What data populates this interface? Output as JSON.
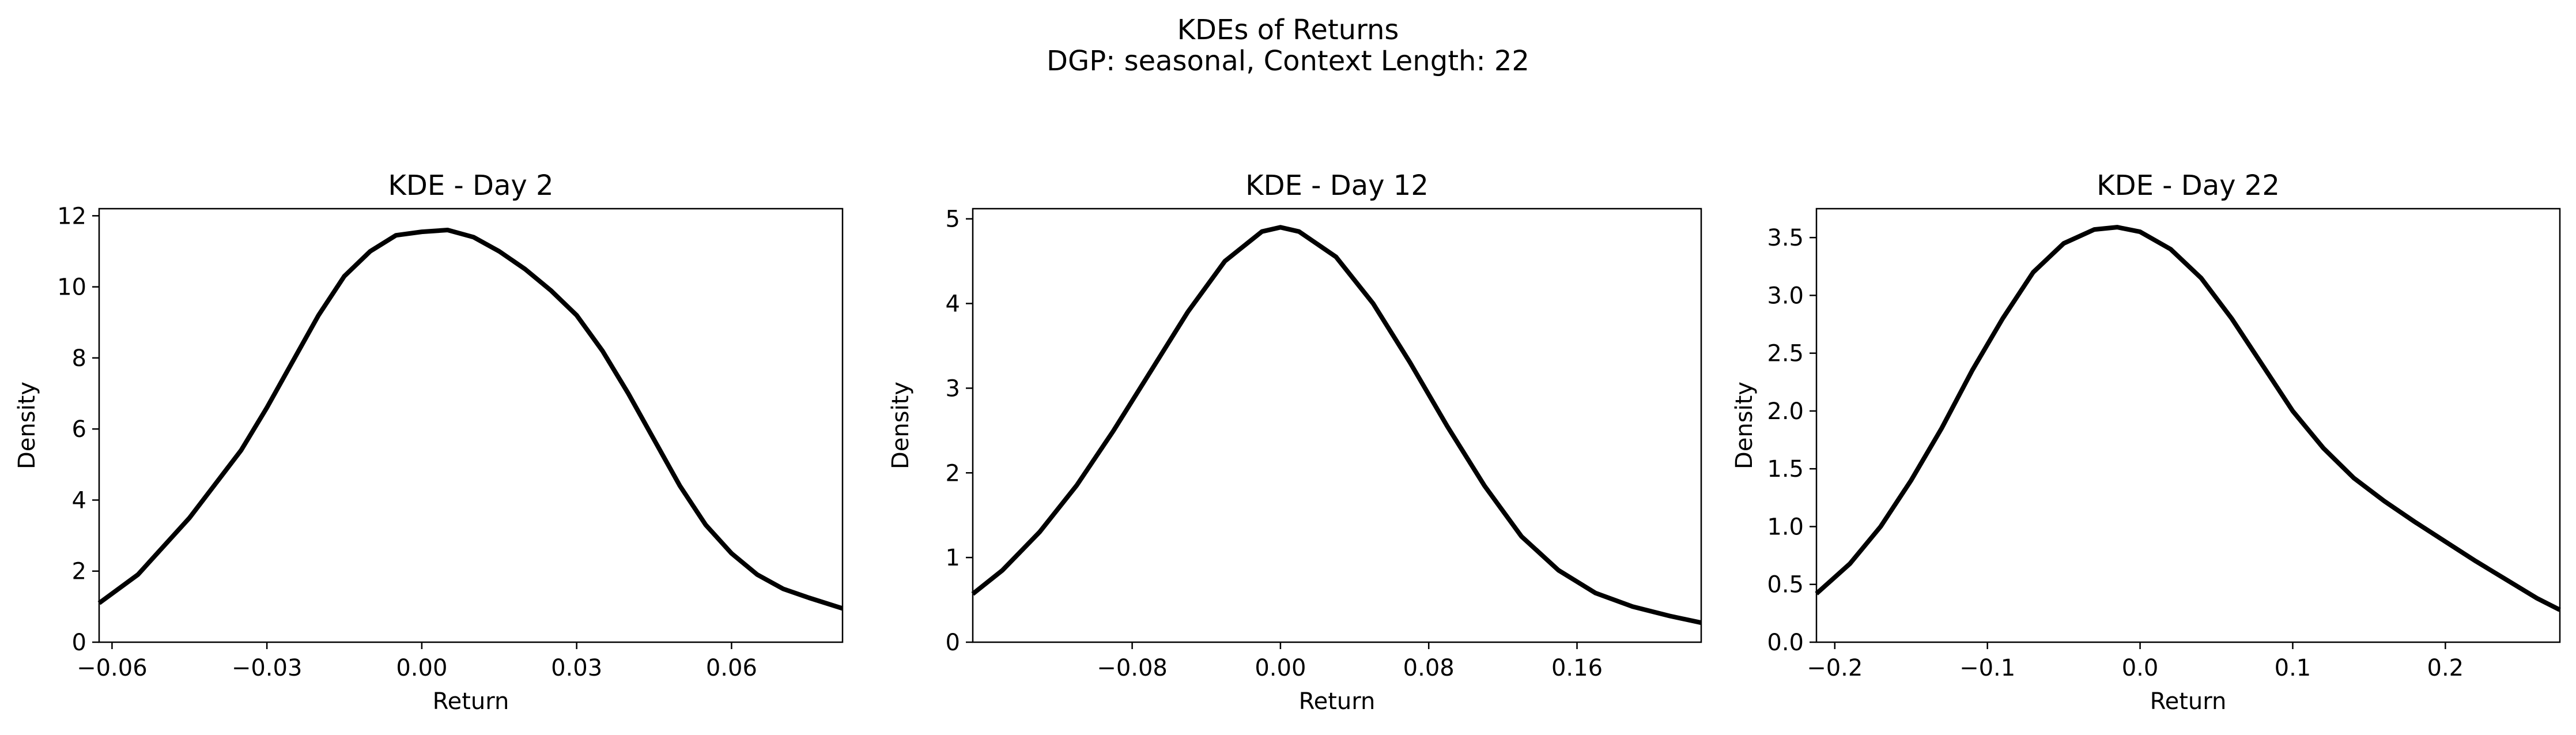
{
  "figure": {
    "title_line1": "KDEs of Returns",
    "title_line2": "DGP: seasonal, Context Length: 22"
  },
  "chart_data": [
    {
      "type": "line",
      "title": "KDE - Day 2",
      "xlabel": "Return",
      "ylabel": "Density",
      "xlim": [
        -0.0625,
        0.0815
      ],
      "ylim": [
        0,
        12.2
      ],
      "xticks": [
        -0.06,
        -0.03,
        0.0,
        0.03,
        0.06
      ],
      "xtick_labels": [
        "−0.06",
        "−0.03",
        "0.00",
        "0.03",
        "0.06"
      ],
      "yticks": [
        0,
        2,
        4,
        6,
        8,
        10,
        12
      ],
      "ytick_labels": [
        "0",
        "2",
        "4",
        "6",
        "8",
        "10",
        "12"
      ],
      "line_color": "#000000",
      "series": [
        {
          "x": [
            -0.0625,
            -0.055,
            -0.045,
            -0.035,
            -0.03,
            -0.025,
            -0.02,
            -0.015,
            -0.01,
            -0.005,
            0.0,
            0.005,
            0.01,
            0.015,
            0.02,
            0.025,
            0.03,
            0.035,
            0.04,
            0.045,
            0.05,
            0.055,
            0.06,
            0.065,
            0.07,
            0.075,
            0.0815
          ],
          "y": [
            1.1,
            1.9,
            3.5,
            5.4,
            6.6,
            7.9,
            9.2,
            10.3,
            11.0,
            11.45,
            11.55,
            11.6,
            11.4,
            11.0,
            10.5,
            9.9,
            9.2,
            8.2,
            7.0,
            5.7,
            4.4,
            3.3,
            2.5,
            1.9,
            1.5,
            1.25,
            0.95
          ]
        }
      ]
    },
    {
      "type": "line",
      "title": "KDE - Day 12",
      "xlabel": "Return",
      "ylabel": "Density",
      "xlim": [
        -0.166,
        0.227
      ],
      "ylim": [
        0,
        5.12
      ],
      "xticks": [
        -0.08,
        0.0,
        0.08,
        0.16
      ],
      "xtick_labels": [
        "−0.08",
        "0.00",
        "0.08",
        "0.16"
      ],
      "yticks": [
        0,
        1,
        2,
        3,
        4,
        5
      ],
      "ytick_labels": [
        "0",
        "1",
        "2",
        "3",
        "4",
        "5"
      ],
      "line_color": "#000000",
      "series": [
        {
          "x": [
            -0.166,
            -0.15,
            -0.13,
            -0.11,
            -0.09,
            -0.07,
            -0.05,
            -0.03,
            -0.01,
            0.0,
            0.01,
            0.03,
            0.05,
            0.07,
            0.09,
            0.11,
            0.13,
            0.15,
            0.17,
            0.19,
            0.21,
            0.227
          ],
          "y": [
            0.57,
            0.85,
            1.3,
            1.85,
            2.5,
            3.2,
            3.9,
            4.5,
            4.85,
            4.9,
            4.85,
            4.55,
            4.0,
            3.3,
            2.55,
            1.85,
            1.25,
            0.85,
            0.58,
            0.42,
            0.31,
            0.23
          ]
        }
      ]
    },
    {
      "type": "line",
      "title": "KDE - Day 22",
      "xlabel": "Return",
      "ylabel": "Density",
      "xlim": [
        -0.212,
        0.275
      ],
      "ylim": [
        0,
        3.75
      ],
      "xticks": [
        -0.2,
        -0.1,
        0.0,
        0.1,
        0.2
      ],
      "xtick_labels": [
        "−0.2",
        "−0.1",
        "0.0",
        "0.1",
        "0.2"
      ],
      "yticks": [
        0,
        0.5,
        1.0,
        1.5,
        2.0,
        2.5,
        3.0,
        3.5
      ],
      "ytick_labels": [
        "0.0",
        "0.5",
        "1.0",
        "1.5",
        "2.0",
        "2.5",
        "3.0",
        "3.5"
      ],
      "line_color": "#000000",
      "series": [
        {
          "x": [
            -0.212,
            -0.19,
            -0.17,
            -0.15,
            -0.13,
            -0.11,
            -0.09,
            -0.07,
            -0.05,
            -0.03,
            -0.015,
            0.0,
            0.02,
            0.04,
            0.06,
            0.08,
            0.1,
            0.12,
            0.14,
            0.16,
            0.18,
            0.2,
            0.22,
            0.24,
            0.26,
            0.275
          ],
          "y": [
            0.42,
            0.68,
            1.0,
            1.4,
            1.85,
            2.35,
            2.8,
            3.2,
            3.45,
            3.57,
            3.59,
            3.55,
            3.4,
            3.15,
            2.8,
            2.4,
            2.0,
            1.68,
            1.42,
            1.22,
            1.04,
            0.87,
            0.7,
            0.54,
            0.38,
            0.28
          ]
        }
      ]
    }
  ]
}
